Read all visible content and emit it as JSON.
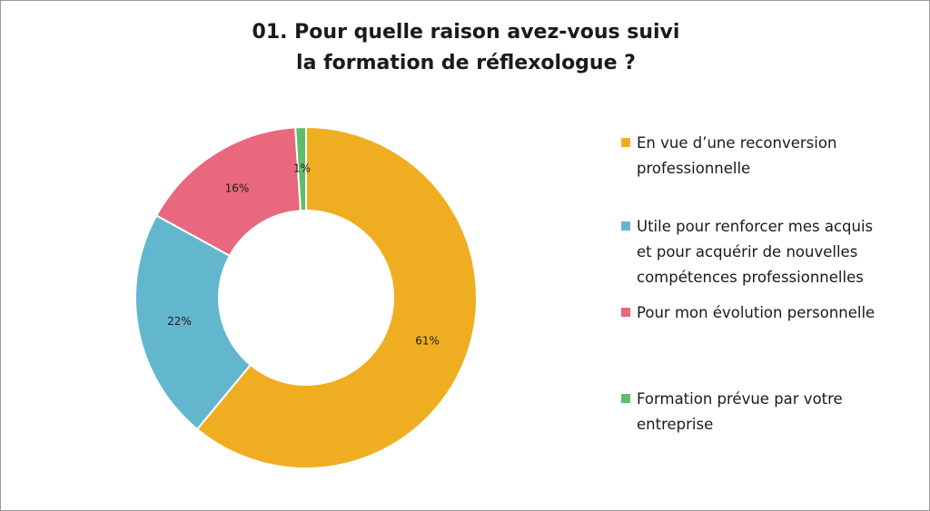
{
  "chart_data": {
    "type": "pie",
    "donut": true,
    "title_lines": [
      "01. Pour quelle raison avez-vous suivi",
      "la formation de réflexologue ?"
    ],
    "title": "01. Pour quelle raison avez-vous suivi la formation de réflexologue ?",
    "legend_position": "right",
    "slices": [
      {
        "label": "En vue d’une reconversion professionnelle",
        "legend_lines": [
          "En vue d’une reconversion",
          "professionnelle"
        ],
        "value": 61,
        "data_label": "61%",
        "color": "#EFAE22"
      },
      {
        "label": "Utile pour renforcer mes acquis et pour acquérir de nouvelles compétences professionnelles",
        "legend_lines": [
          "Utile pour renforcer mes acquis",
          "et pour acquérir de nouvelles",
          "compétences professionnelles"
        ],
        "value": 22,
        "data_label": "22%",
        "color": "#62B6CE"
      },
      {
        "label": "Pour mon évolution personnelle",
        "legend_lines": [
          "Pour mon évolution personnelle"
        ],
        "value": 16,
        "data_label": "16%",
        "color": "#E8687E"
      },
      {
        "label": "Formation prévue par votre entreprise",
        "legend_lines": [
          "Formation prévue par votre",
          "entreprise"
        ],
        "value": 1,
        "data_label": "1%",
        "color": "#5EBD6A"
      }
    ]
  }
}
